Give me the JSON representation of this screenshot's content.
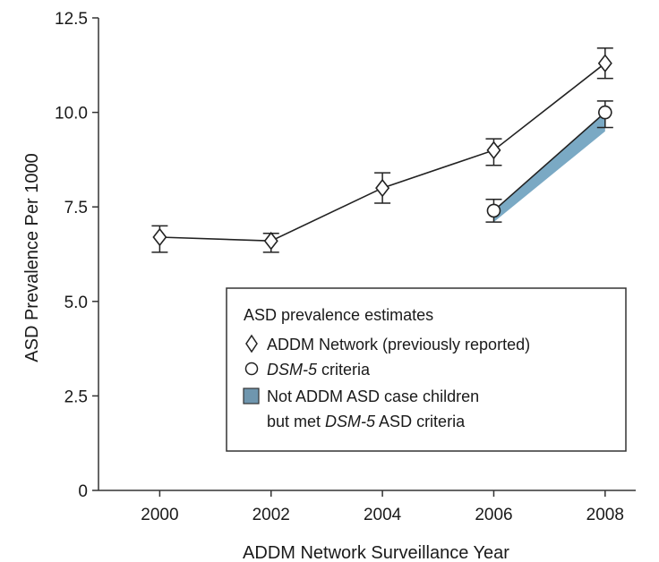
{
  "chart_data": {
    "type": "line",
    "xlabel": "ADDM Network Surveillance Year",
    "ylabel": "ASD Prevalence Per 1000",
    "x_ticks": [
      "2000",
      "2002",
      "2004",
      "2006",
      "2008"
    ],
    "y_ticks": [
      "0",
      "2.5",
      "5.0",
      "7.5",
      "10.0",
      "12.5"
    ],
    "xlim": [
      1998.9,
      2009.0
    ],
    "ylim": [
      0,
      12.5
    ],
    "grid": false,
    "legend_position": "lower-right",
    "legend": {
      "title": "ASD prevalence estimates",
      "entries": [
        {
          "marker": "diamond",
          "label": "ADDM Network (previously reported)"
        },
        {
          "marker": "circle",
          "label_italic": "DSM-5",
          "label_rest": " criteria"
        },
        {
          "marker": "band",
          "label_line1": "Not ADDM ASD case children",
          "label_line2_prefix": "but met ",
          "label_line2_italic": "DSM-5",
          "label_line2_suffix": " ASD criteria"
        }
      ]
    },
    "series": [
      {
        "name": "ADDM Network (previously reported)",
        "marker": "diamond",
        "points": [
          {
            "x": 2000,
            "y": 6.7,
            "lo": 6.3,
            "hi": 7.0
          },
          {
            "x": 2002,
            "y": 6.6,
            "lo": 6.3,
            "hi": 6.8
          },
          {
            "x": 2004,
            "y": 8.0,
            "lo": 7.6,
            "hi": 8.4
          },
          {
            "x": 2006,
            "y": 9.0,
            "lo": 8.6,
            "hi": 9.3
          },
          {
            "x": 2008,
            "y": 11.3,
            "lo": 10.9,
            "hi": 11.7
          }
        ]
      },
      {
        "name": "DSM-5 criteria",
        "marker": "circle",
        "points": [
          {
            "x": 2006,
            "y": 7.4,
            "lo": 7.1,
            "hi": 7.7
          },
          {
            "x": 2008,
            "y": 10.0,
            "lo": 9.6,
            "hi": 10.3
          }
        ]
      }
    ],
    "band": {
      "name": "Not ADDM ASD case children but met DSM-5 ASD criteria",
      "x": [
        2006,
        2008
      ],
      "upper": [
        7.4,
        10.0
      ],
      "lower": [
        7.1,
        9.5
      ]
    },
    "colors": {
      "band_fill": "#7aa9c4",
      "line": "#222222",
      "marker_face": "#ffffff",
      "legend_band": "#6f96ae"
    }
  }
}
